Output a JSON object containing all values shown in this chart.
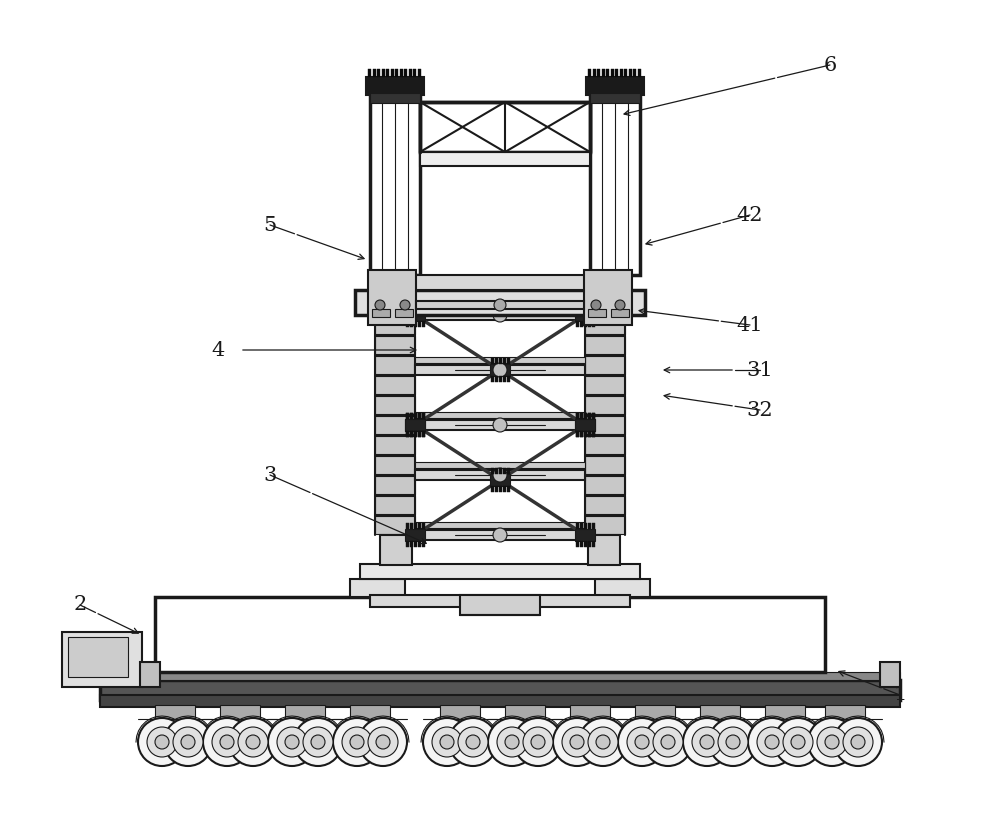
{
  "bg": "#ffffff",
  "lc": "#1a1a1a",
  "fig_w": 10.0,
  "fig_h": 8.15,
  "dpi": 100
}
